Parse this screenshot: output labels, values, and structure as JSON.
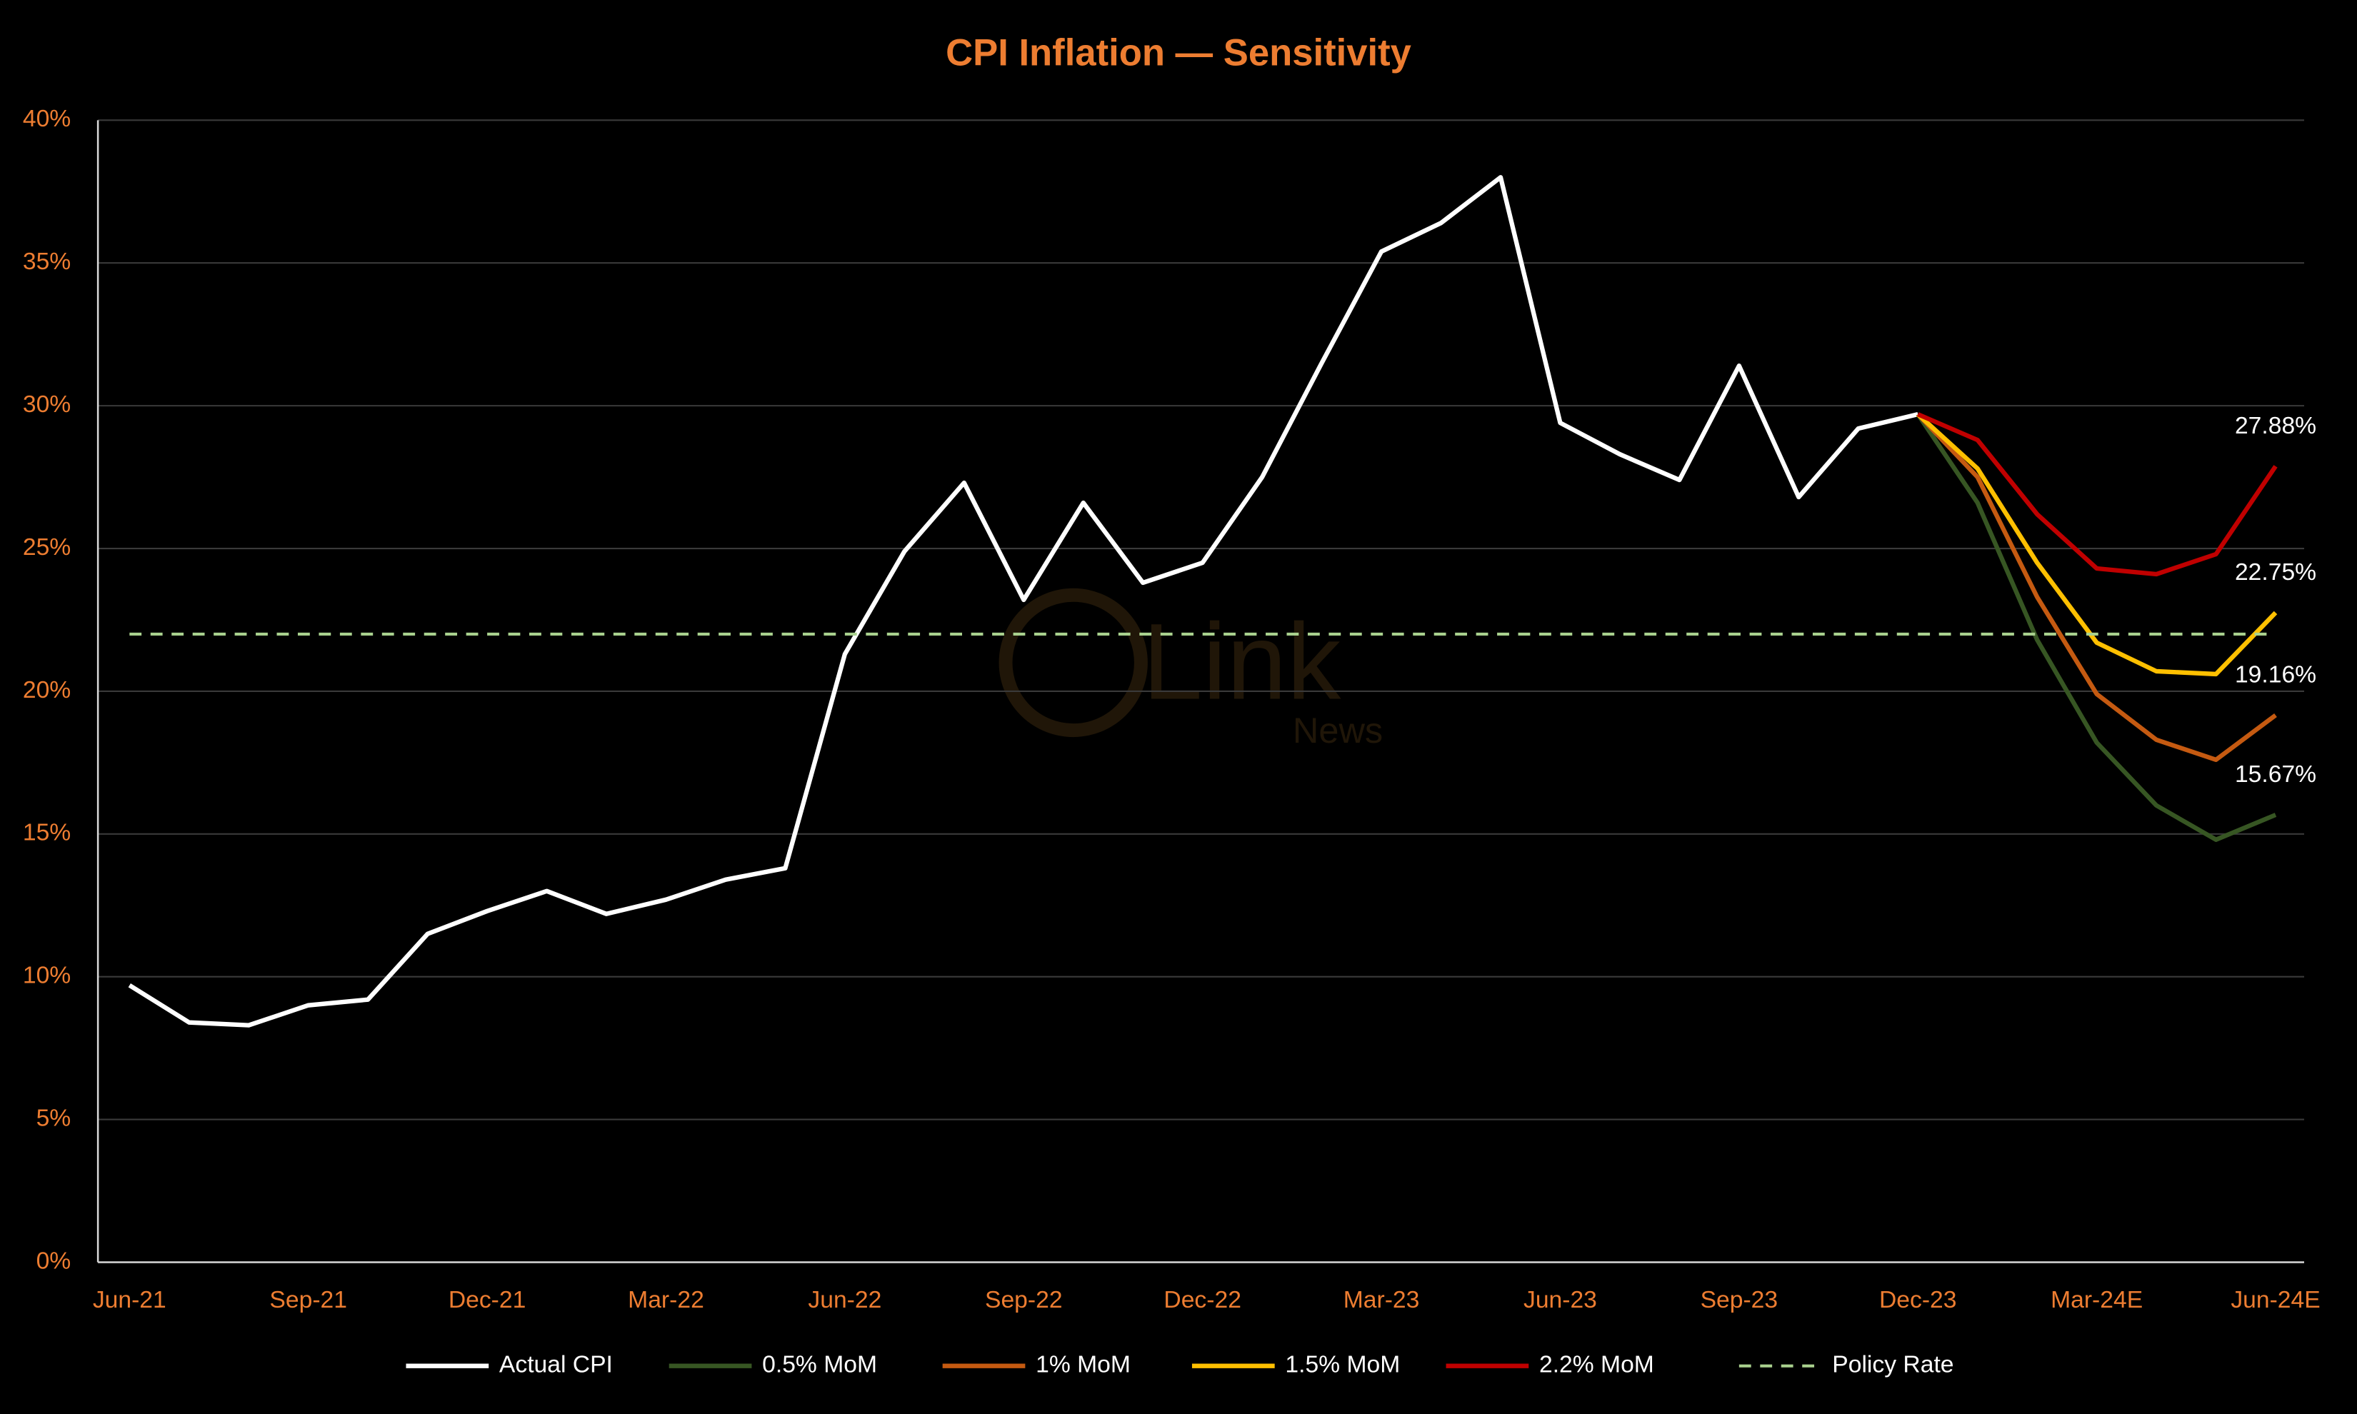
{
  "chart_data": {
    "type": "line",
    "title": "CPI Inflation — Sensitivity",
    "watermark": [
      "Link",
      "News"
    ],
    "categories": [
      "Jun-21",
      null,
      null,
      "Sep-21",
      null,
      null,
      "Dec-21",
      null,
      null,
      "Mar-22",
      null,
      null,
      "Jun-22",
      null,
      null,
      "Sep-22",
      null,
      null,
      "Dec-22",
      null,
      null,
      "Mar-23",
      null,
      null,
      "Jun-23",
      null,
      null,
      "Sep-23",
      null,
      null,
      "Dec-23",
      null,
      null,
      "Mar-24E",
      null,
      null,
      "Jun-24E"
    ],
    "ylim": [
      0,
      40
    ],
    "yticks": [
      {
        "value": 0,
        "label": "0%"
      },
      {
        "value": 5,
        "label": "5%"
      },
      {
        "value": 10,
        "label": "10%"
      },
      {
        "value": 15,
        "label": "15%"
      },
      {
        "value": 20,
        "label": "20%"
      },
      {
        "value": 25,
        "label": "25%"
      },
      {
        "value": 30,
        "label": "30%"
      },
      {
        "value": 35,
        "label": "35%"
      },
      {
        "value": 40,
        "label": "40%"
      }
    ],
    "grid": true,
    "legend": "bottom",
    "series": [
      {
        "name": "Actual CPI",
        "color": "#ffffff",
        "values": [
          9.7,
          8.4,
          8.3,
          9.0,
          9.2,
          11.5,
          12.3,
          13.0,
          12.2,
          12.7,
          13.4,
          13.8,
          21.3,
          24.9,
          27.3,
          23.2,
          26.6,
          23.8,
          24.5,
          27.5,
          31.5,
          35.4,
          36.4,
          38.0,
          29.4,
          28.3,
          27.4,
          31.4,
          26.8,
          29.2,
          29.7,
          null,
          null,
          null,
          null,
          null,
          null
        ]
      },
      {
        "name": "0.5% MoM",
        "color": "#375623",
        "values": [
          null,
          null,
          null,
          null,
          null,
          null,
          null,
          null,
          null,
          null,
          null,
          null,
          null,
          null,
          null,
          null,
          null,
          null,
          null,
          null,
          null,
          null,
          null,
          null,
          null,
          null,
          null,
          null,
          null,
          null,
          29.7,
          26.6,
          21.8,
          18.2,
          16.0,
          14.8,
          15.67
        ],
        "value_labels": [
          null,
          null,
          null,
          null,
          null,
          null,
          null,
          null,
          null,
          null,
          null,
          null,
          null,
          null,
          null,
          null,
          null,
          null,
          null,
          null,
          null,
          null,
          null,
          null,
          null,
          null,
          null,
          null,
          null,
          null,
          null,
          null,
          null,
          null,
          null,
          null,
          "15.67%"
        ]
      },
      {
        "name": "1% MoM",
        "color": "#c55a11",
        "values": [
          null,
          null,
          null,
          null,
          null,
          null,
          null,
          null,
          null,
          null,
          null,
          null,
          null,
          null,
          null,
          null,
          null,
          null,
          null,
          null,
          null,
          null,
          null,
          null,
          null,
          null,
          null,
          null,
          null,
          null,
          29.7,
          27.5,
          23.3,
          19.9,
          18.3,
          17.6,
          19.16
        ],
        "value_labels": [
          null,
          null,
          null,
          null,
          null,
          null,
          null,
          null,
          null,
          null,
          null,
          null,
          null,
          null,
          null,
          null,
          null,
          null,
          null,
          null,
          null,
          null,
          null,
          null,
          null,
          null,
          null,
          null,
          null,
          null,
          null,
          null,
          null,
          null,
          null,
          null,
          "19.16%"
        ]
      },
      {
        "name": "1.5% MoM",
        "color": "#ffc000",
        "values": [
          null,
          null,
          null,
          null,
          null,
          null,
          null,
          null,
          null,
          null,
          null,
          null,
          null,
          null,
          null,
          null,
          null,
          null,
          null,
          null,
          null,
          null,
          null,
          null,
          null,
          null,
          null,
          null,
          null,
          null,
          29.7,
          27.8,
          24.5,
          21.7,
          20.7,
          20.6,
          22.75
        ],
        "value_labels": [
          null,
          null,
          null,
          null,
          null,
          null,
          null,
          null,
          null,
          null,
          null,
          null,
          null,
          null,
          null,
          null,
          null,
          null,
          null,
          null,
          null,
          null,
          null,
          null,
          null,
          null,
          null,
          null,
          null,
          null,
          null,
          null,
          null,
          null,
          null,
          null,
          "22.75%"
        ]
      },
      {
        "name": "2.2% MoM",
        "color": "#c00000",
        "values": [
          null,
          null,
          null,
          null,
          null,
          null,
          null,
          null,
          null,
          null,
          null,
          null,
          null,
          null,
          null,
          null,
          null,
          null,
          null,
          null,
          null,
          null,
          null,
          null,
          null,
          null,
          null,
          null,
          null,
          null,
          29.7,
          28.8,
          26.2,
          24.3,
          24.1,
          24.8,
          27.88
        ],
        "value_labels": [
          null,
          null,
          null,
          null,
          null,
          null,
          null,
          null,
          null,
          null,
          null,
          null,
          null,
          null,
          null,
          null,
          null,
          null,
          null,
          null,
          null,
          null,
          null,
          null,
          null,
          null,
          null,
          null,
          null,
          null,
          null,
          null,
          null,
          null,
          null,
          null,
          "27.88%"
        ]
      },
      {
        "name": "Policy Rate",
        "color": "#a9d18e",
        "dash": true,
        "values": [
          22,
          22,
          22,
          22,
          22,
          22,
          22,
          22,
          22,
          22,
          22,
          22,
          22,
          22,
          22,
          22,
          22,
          22,
          22,
          22,
          22,
          22,
          22,
          22,
          22,
          22,
          22,
          22,
          22,
          22,
          22,
          22,
          22,
          22,
          22,
          22,
          22
        ]
      }
    ]
  }
}
